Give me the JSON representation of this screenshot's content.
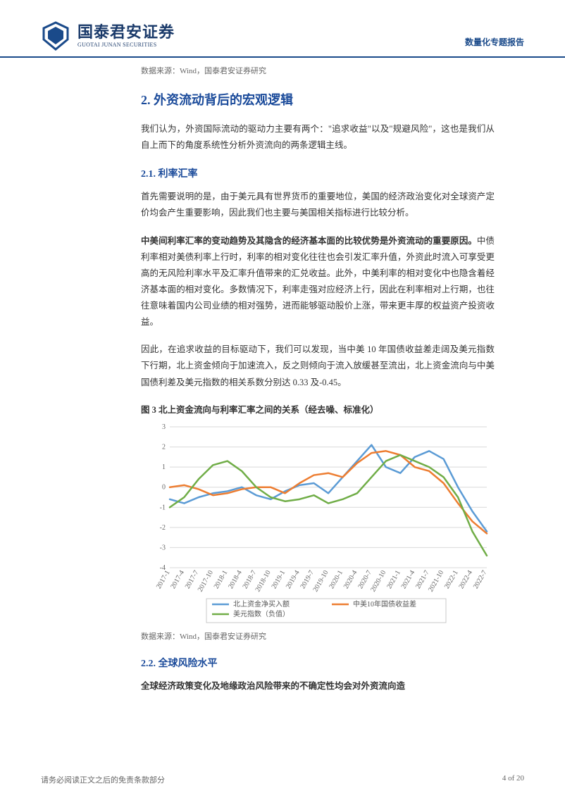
{
  "header": {
    "logo_cn": "国泰君安证券",
    "logo_en": "GUOTAI JUNAN SECURITIES",
    "report_type": "数量化专题报告"
  },
  "source1": "数据来源：Wind，国泰君安证券研究",
  "section2": {
    "title": "2.  外资流动背后的宏观逻辑",
    "para1": "我们认为，外资国际流动的驱动力主要有两个：\"追求收益\"以及\"规避风险\"，这也是我们从自上而下的角度系统性分析外资流向的两条逻辑主线。"
  },
  "section21": {
    "title": "2.1.  利率汇率",
    "para1": "首先需要说明的是，由于美元具有世界货币的重要地位，美国的经济政治变化对全球资产定价均会产生重要影响，因此我们也主要与美国相关指标进行比较分析。",
    "para2_bold": "中美间利率汇率的变动趋势及其隐含的经济基本面的比较优势是外资流动的重要原因。",
    "para2_rest": "中债利率相对美债利率上行时，利率的相对变化往往也会引发汇率升值，外资此时流入可享受更高的无风险利率水平及汇率升值带来的汇兑收益。此外，中美利率的相对变化中也隐含着经济基本面的相对变化。多数情况下，利率走强对应经济上行，因此在利率相对上行期，也往往意味着国内公司业绩的相对强势，进而能够驱动股价上涨，带来更丰厚的权益资产投资收益。",
    "para3": "因此，在追求收益的目标驱动下，我们可以发现，当中美 10 年国债收益差走阔及美元指数下行期，北上资金倾向于加速流入，反之则倾向于流入放缓甚至流出，北上资金流向与中美国债利差及美元指数的相关系数分别达 0.33 及-0.45。"
  },
  "figure3": {
    "title": "图 3  北上资金流向与利率汇率之间的关系（经去噪、标准化）",
    "type": "line",
    "ylim": [
      -4,
      3
    ],
    "yticks": [
      -4,
      -3,
      -2,
      -1,
      0,
      1,
      2,
      3
    ],
    "xlabels": [
      "2017-1",
      "2017-4",
      "2017-7",
      "2017-10",
      "2018-1",
      "2018-4",
      "2018-7",
      "2018-10",
      "2019-1",
      "2019-4",
      "2019-7",
      "2019-10",
      "2020-1",
      "2020-4",
      "2020-7",
      "2020-10",
      "2021-1",
      "2021-4",
      "2021-7",
      "2021-10",
      "2022-1",
      "2022-4",
      "2022-7"
    ],
    "grid_color": "#d9d9d9",
    "background_color": "#ffffff",
    "line_width": 2.5,
    "series": [
      {
        "name": "北上资金净买入额",
        "color": "#5b9bd5",
        "values": [
          -0.6,
          -0.8,
          -0.5,
          -0.3,
          -0.2,
          0.0,
          -0.4,
          -0.6,
          -0.2,
          0.1,
          0.2,
          -0.3,
          0.5,
          1.3,
          2.1,
          1.0,
          0.7,
          1.5,
          1.8,
          1.4,
          0.0,
          -1.2,
          -2.2
        ]
      },
      {
        "name": "中美10年国债收益差",
        "color": "#ed7d31",
        "values": [
          0.0,
          0.1,
          -0.1,
          -0.4,
          -0.3,
          -0.1,
          0.0,
          0.0,
          -0.3,
          0.2,
          0.6,
          0.7,
          0.5,
          1.2,
          1.7,
          1.8,
          1.6,
          1.0,
          0.8,
          0.2,
          -0.8,
          -1.7,
          -2.3
        ]
      },
      {
        "name": "美元指数（负值）",
        "color": "#70ad47",
        "values": [
          -1.0,
          -0.5,
          0.4,
          1.1,
          1.3,
          0.8,
          0.0,
          -0.5,
          -0.7,
          -0.6,
          -0.4,
          -0.8,
          -0.6,
          -0.3,
          0.5,
          1.3,
          1.6,
          1.3,
          1.0,
          0.5,
          -0.5,
          -2.2,
          -3.4
        ]
      }
    ],
    "legend_font_size": 10,
    "axis_font_size": 10
  },
  "source2": "数据来源：Wind，国泰君安证券研究",
  "section22": {
    "title": "2.2.  全球风险水平",
    "para1_bold": "全球经济政策变化及地缘政治风险带来的不确定性均会对外资流向造"
  },
  "footer": {
    "left": "请务必阅读正文之后的免责条款部分",
    "right": "4 of 20"
  }
}
